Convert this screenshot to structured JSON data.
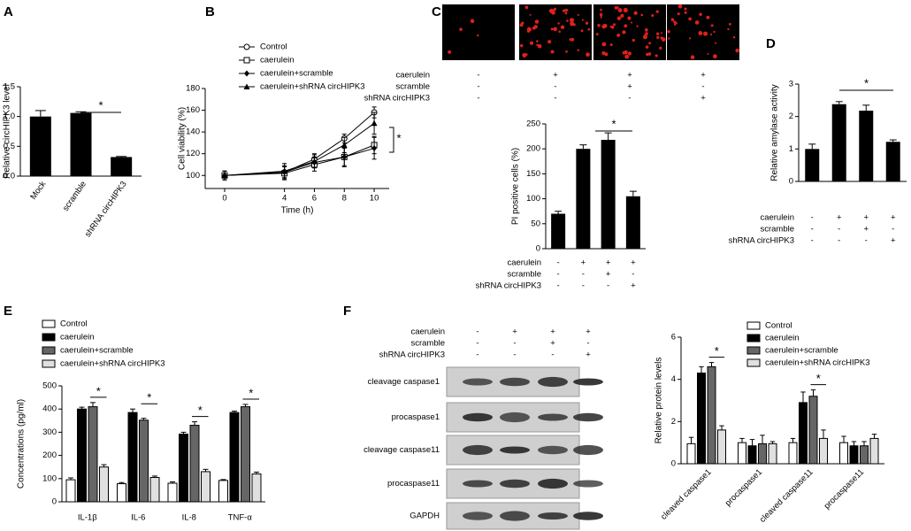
{
  "chart_data": [
    {
      "type": "bar",
      "panel_label": "A",
      "y_label": "Relative circHIPK3 level",
      "categories": [
        "Mock",
        "scramble",
        "shRNA circHIPK3"
      ],
      "values": [
        1.0,
        1.06,
        0.32
      ],
      "errors": [
        0.1,
        0.02,
        0.01
      ],
      "color": "#000000",
      "ylim": [
        0,
        1.5
      ],
      "yticks": [
        {
          "value": 0,
          "label": "0.0"
        },
        {
          "value": 0.5,
          "label": "0.5"
        },
        {
          "value": 1,
          "label": "1.0"
        },
        {
          "value": 1.5,
          "label": "1.5"
        }
      ],
      "annotations": [
        "*"
      ]
    },
    {
      "type": "line",
      "panel_label": "B",
      "y_label": "Cell viability (%)",
      "x_label": "Time (h)",
      "x": [
        0,
        4,
        6,
        8,
        10
      ],
      "xlim": [
        -1.3,
        11
      ],
      "xticks": [
        0,
        4,
        6,
        8,
        10
      ],
      "ylim": [
        88,
        180
      ],
      "yticks": [
        100,
        120,
        140,
        160,
        180
      ],
      "series": [
        {
          "name": "Control",
          "marker": "circle-open",
          "color": "#000000",
          "values": [
            100,
            103,
            115,
            134,
            158
          ],
          "errors": [
            4,
            5,
            5,
            4,
            5
          ]
        },
        {
          "name": "caerulein",
          "marker": "square-open",
          "color": "#000000",
          "values": [
            100,
            102,
            110,
            117,
            128
          ],
          "errors": [
            4,
            6,
            6,
            8,
            8
          ]
        },
        {
          "name": "caerulein+scramble",
          "marker": "diamond",
          "color": "#000000",
          "values": [
            100,
            103,
            112,
            117,
            125
          ],
          "errors": [
            4,
            6,
            5,
            9,
            10
          ]
        },
        {
          "name": "caerulein+shRNA circHIPK3",
          "marker": "triangle",
          "color": "#000000",
          "values": [
            100,
            104,
            113,
            128,
            148
          ],
          "errors": [
            4,
            7,
            6,
            7,
            10
          ]
        }
      ],
      "annotations": [
        "*"
      ]
    },
    {
      "type": "bar",
      "panel_label": "C",
      "y_label": "PI positive cells (%)",
      "image_conditions": {
        "rows": [
          {
            "label": "caerulein",
            "marks": [
              "-",
              "+",
              "+",
              "+"
            ]
          },
          {
            "label": "scramble",
            "marks": [
              "-",
              "-",
              "+",
              "-"
            ]
          },
          {
            "label": "shRNA circHIPK3",
            "marks": [
              "-",
              "-",
              "-",
              "+"
            ]
          }
        ]
      },
      "conditions": {
        "rows": [
          {
            "label": "caerulein",
            "marks": [
              "-",
              "+",
              "+",
              "+"
            ]
          },
          {
            "label": "scramble",
            "marks": [
              "-",
              "-",
              "+",
              "-"
            ]
          },
          {
            "label": "shRNA circHIPK3",
            "marks": [
              "-",
              "-",
              "-",
              "+"
            ]
          }
        ]
      },
      "values": [
        70,
        200,
        218,
        105
      ],
      "errors": [
        5,
        8,
        14,
        10
      ],
      "color": "#000000",
      "ylim": [
        0,
        250
      ],
      "yticks": [
        0,
        50,
        100,
        150,
        200,
        250
      ],
      "annotations": [
        "*"
      ]
    },
    {
      "type": "bar",
      "panel_label": "D",
      "y_label": "Relative amylase activity",
      "conditions": {
        "rows": [
          {
            "label": "caerulein",
            "marks": [
              "-",
              "+",
              "+",
              "+"
            ]
          },
          {
            "label": "scramble",
            "marks": [
              "-",
              "-",
              "+",
              "-"
            ]
          },
          {
            "label": "shRNA circHIPK3",
            "marks": [
              "-",
              "-",
              "-",
              "+"
            ]
          }
        ]
      },
      "values": [
        1.0,
        2.38,
        2.18,
        1.22
      ],
      "errors": [
        0.15,
        0.08,
        0.17,
        0.06
      ],
      "color": "#000000",
      "ylim": [
        0,
        3
      ],
      "yticks": [
        0,
        1,
        2,
        3
      ],
      "annotations": [
        "*"
      ]
    },
    {
      "type": "grouped_bar",
      "panel_label": "E",
      "y_label": "Concentrations (pg/ml)",
      "categories": [
        "IL-1β",
        "IL-6",
        "IL-8",
        "TNF-α"
      ],
      "series": [
        {
          "name": "Control",
          "color": "#ffffff",
          "values": [
            95,
            78,
            80,
            92
          ],
          "errors": [
            8,
            5,
            6,
            4
          ]
        },
        {
          "name": "caerulein",
          "color": "#000000",
          "values": [
            400,
            385,
            292,
            385
          ],
          "errors": [
            8,
            15,
            8,
            6
          ]
        },
        {
          "name": "caerulein+scramble",
          "color": "#666666",
          "values": [
            410,
            352,
            330,
            410
          ],
          "errors": [
            18,
            8,
            15,
            10
          ]
        },
        {
          "name": "caerulein+shRNA circHIPK3",
          "color": "#e0e0e0",
          "values": [
            150,
            105,
            130,
            120
          ],
          "errors": [
            10,
            6,
            10,
            8
          ]
        }
      ],
      "ylim": [
        0,
        500
      ],
      "yticks": [
        0,
        100,
        200,
        300,
        400,
        500
      ],
      "annotations": [
        "*",
        "*",
        "*",
        "*"
      ]
    },
    {
      "type": "grouped_bar",
      "panel_label": "F",
      "y_label": "Relative protein levels",
      "blot": {
        "conditions": {
          "rows": [
            {
              "label": "caerulein",
              "marks": [
                "-",
                "+",
                "+",
                "+"
              ]
            },
            {
              "label": "scramble",
              "marks": [
                "-",
                "-",
                "+",
                "-"
              ]
            },
            {
              "label": "shRNA circHIPK3",
              "marks": [
                "-",
                "-",
                "-",
                "+"
              ]
            }
          ]
        },
        "rows": [
          "cleavage caspase1",
          "procaspase1",
          "cleavage caspase11",
          "procaspase11",
          "GAPDH"
        ]
      },
      "categories": [
        "cleaved caspase1",
        "procaspase1",
        "cleaved caspase11",
        "procaspase11"
      ],
      "series": [
        {
          "name": "Control",
          "color": "#ffffff",
          "values": [
            0.95,
            1.0,
            1.0,
            1.0
          ],
          "errors": [
            0.3,
            0.2,
            0.2,
            0.3
          ]
        },
        {
          "name": "caerulein",
          "color": "#000000",
          "values": [
            4.3,
            0.85,
            2.9,
            0.85
          ],
          "errors": [
            0.3,
            0.3,
            0.5,
            0.2
          ]
        },
        {
          "name": "caerulein+scramble",
          "color": "#666666",
          "values": [
            4.6,
            0.95,
            3.2,
            0.85
          ],
          "errors": [
            0.2,
            0.4,
            0.3,
            0.2
          ]
        },
        {
          "name": "caerulein+shRNA circHIPK3",
          "color": "#e0e0e0",
          "values": [
            1.6,
            0.95,
            1.2,
            1.2
          ],
          "errors": [
            0.2,
            0.1,
            0.4,
            0.2
          ]
        }
      ],
      "ylim": [
        0,
        6
      ],
      "yticks": [
        0,
        2,
        4,
        6
      ],
      "annotations": [
        "*",
        "*"
      ]
    }
  ]
}
